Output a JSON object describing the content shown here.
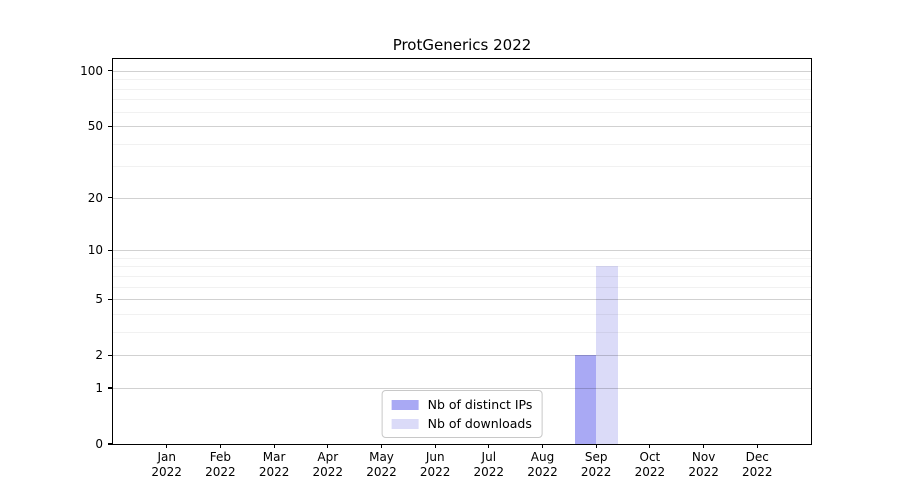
{
  "chart_data": {
    "type": "bar",
    "title": "ProtGenerics 2022",
    "xlabel": "",
    "ylabel": "",
    "categories": [
      "Jan",
      "Feb",
      "Mar",
      "Apr",
      "May",
      "Jun",
      "Jul",
      "Aug",
      "Sep",
      "Oct",
      "Nov",
      "Dec"
    ],
    "category_year": "2022",
    "series": [
      {
        "name": "Nb of distinct IPs",
        "color": "#a9a9f4",
        "values": [
          0,
          0,
          0,
          0,
          0,
          0,
          0,
          0,
          2,
          0,
          0,
          0
        ]
      },
      {
        "name": "Nb of downloads",
        "color": "#dbdbf8",
        "values": [
          0,
          0,
          0,
          0,
          0,
          0,
          0,
          0,
          8,
          0,
          0,
          0
        ]
      }
    ],
    "y_axis": {
      "scale": "log1p",
      "major_ticks": [
        0,
        1,
        2,
        5,
        10,
        20,
        50,
        100
      ],
      "minor_gridlines": [
        3,
        4,
        6,
        7,
        8,
        9,
        30,
        40,
        60,
        70,
        80,
        90
      ],
      "top_value": 116
    },
    "grid": true,
    "legend_position": "lower center",
    "bar_width_fraction": 0.4
  }
}
